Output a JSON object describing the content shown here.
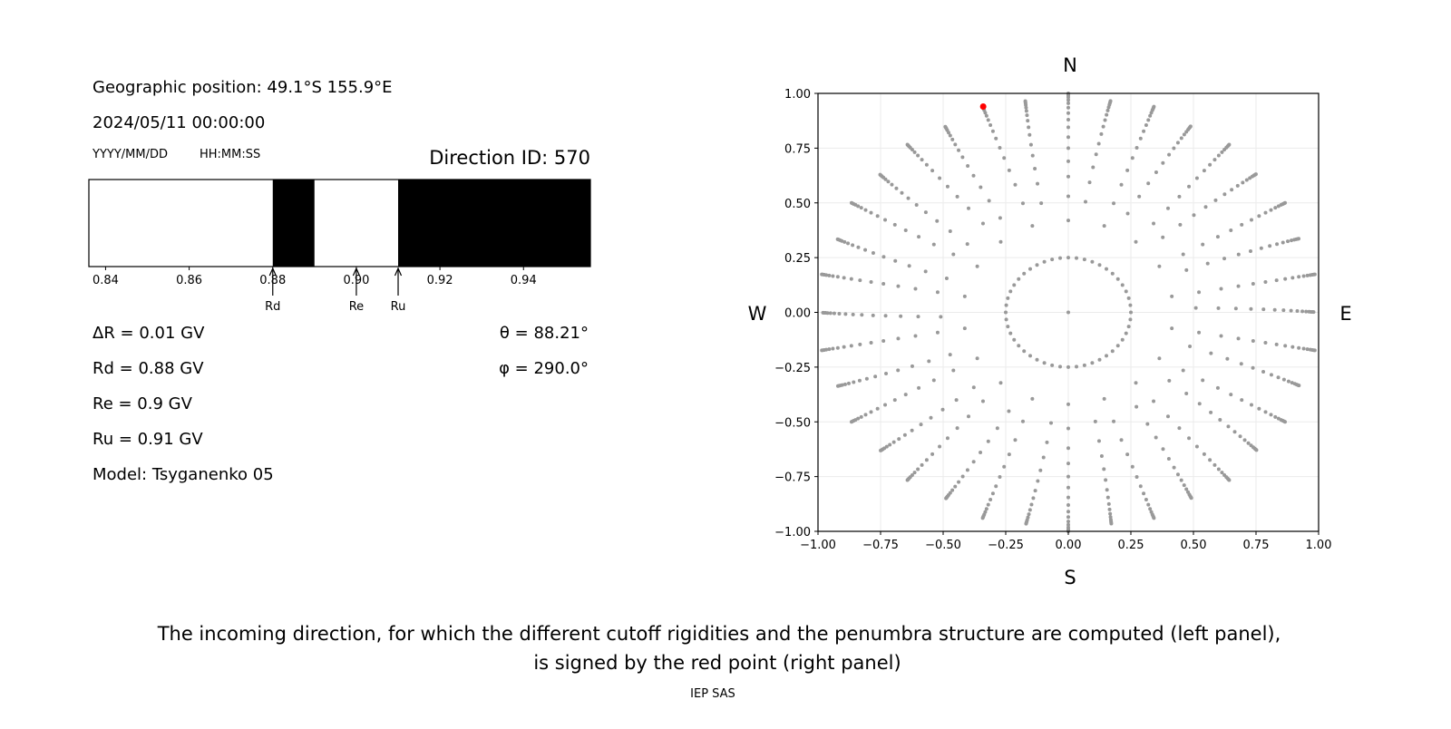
{
  "left_panel": {
    "geo_position": "Geographic position: 49.1°S 155.9°E",
    "datetime": "2024/05/11 00:00:00",
    "date_format": "YYYY/MM/DD",
    "time_format": "HH:MM:SS",
    "direction_id": "Direction ID: 570",
    "delta_r": "ΔR = 0.01 GV",
    "rd": "Rd = 0.88 GV",
    "re": "Re = 0.9 GV",
    "ru": "Ru = 0.91 GV",
    "model": "Model: Tsyganenko 05",
    "theta": "θ = 88.21°",
    "phi": "φ = 290.0°"
  },
  "caption": {
    "line1": "The incoming direction, for which the different cutoff rigidities and the penumbra structure are computed (left panel),",
    "line2": "is signed by the red point (right panel)",
    "credit": "IEP SAS"
  },
  "chart_data": [
    {
      "type": "bar",
      "subtype": "penumbra-band",
      "xlim": [
        0.836,
        0.956
      ],
      "xticks": [
        "0.84",
        "0.86",
        "0.88",
        "0.90",
        "0.92",
        "0.94"
      ],
      "bands": [
        {
          "from": 0.836,
          "to": 0.88,
          "color": "#ffffff"
        },
        {
          "from": 0.88,
          "to": 0.89,
          "color": "#000000"
        },
        {
          "from": 0.89,
          "to": 0.91,
          "color": "#ffffff"
        },
        {
          "from": 0.91,
          "to": 0.956,
          "color": "#000000"
        }
      ],
      "markers": [
        {
          "label": "Rd",
          "value": 0.88
        },
        {
          "label": "Re",
          "value": 0.9
        },
        {
          "label": "Ru",
          "value": 0.91
        }
      ]
    },
    {
      "type": "scatter",
      "xlim": [
        -1,
        1
      ],
      "ylim": [
        -1,
        1
      ],
      "xticks": [
        "−1.00",
        "−0.75",
        "−0.50",
        "−0.25",
        "0.00",
        "0.25",
        "0.50",
        "0.75",
        "1.00"
      ],
      "yticks": [
        "−1.00",
        "−0.75",
        "−0.50",
        "−0.25",
        "0.00",
        "0.25",
        "0.50",
        "0.75",
        "1.00"
      ],
      "grid": true,
      "directions": {
        "top": "N",
        "bottom": "S",
        "left": "W",
        "right": "E"
      },
      "point_color": "#999999",
      "highlight_color": "#ff0000",
      "highlight_point": {
        "x": -0.34,
        "y": 0.94
      },
      "spoke_step_deg": 10,
      "spoke_radii": [
        0.42,
        0.53,
        0.62,
        0.69,
        0.75,
        0.8,
        0.845,
        0.88,
        0.91,
        0.935,
        0.955,
        0.97,
        0.982,
        0.99,
        0.996,
        1.0
      ],
      "inner_ring_radius": 0.25,
      "inner_ring_step_deg": 7.5
    }
  ]
}
